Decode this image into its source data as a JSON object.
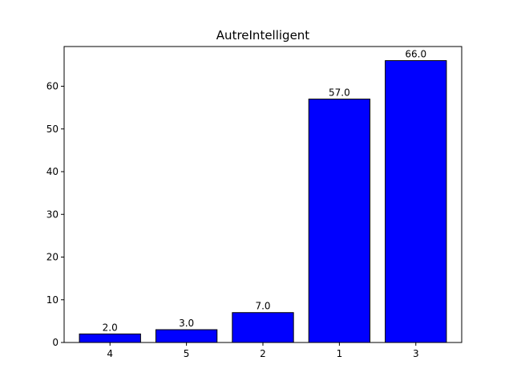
{
  "chart_data": {
    "type": "bar",
    "title": "AutreIntelligent",
    "xlabel": "",
    "ylabel": "",
    "categories": [
      "4",
      "5",
      "2",
      "1",
      "3"
    ],
    "values": [
      2.0,
      3.0,
      7.0,
      57.0,
      66.0
    ],
    "value_labels": [
      "2.0",
      "3.0",
      "7.0",
      "57.0",
      "66.0"
    ],
    "ylim": [
      0,
      69.3
    ],
    "yticks": [
      0,
      10,
      20,
      30,
      40,
      50,
      60
    ],
    "ytick_labels": [
      "0",
      "10",
      "20",
      "30",
      "40",
      "50",
      "60"
    ],
    "grid": false,
    "legend": "none",
    "colors": {
      "bar_fill": "#0000ff",
      "bar_edge": "#000000"
    }
  }
}
